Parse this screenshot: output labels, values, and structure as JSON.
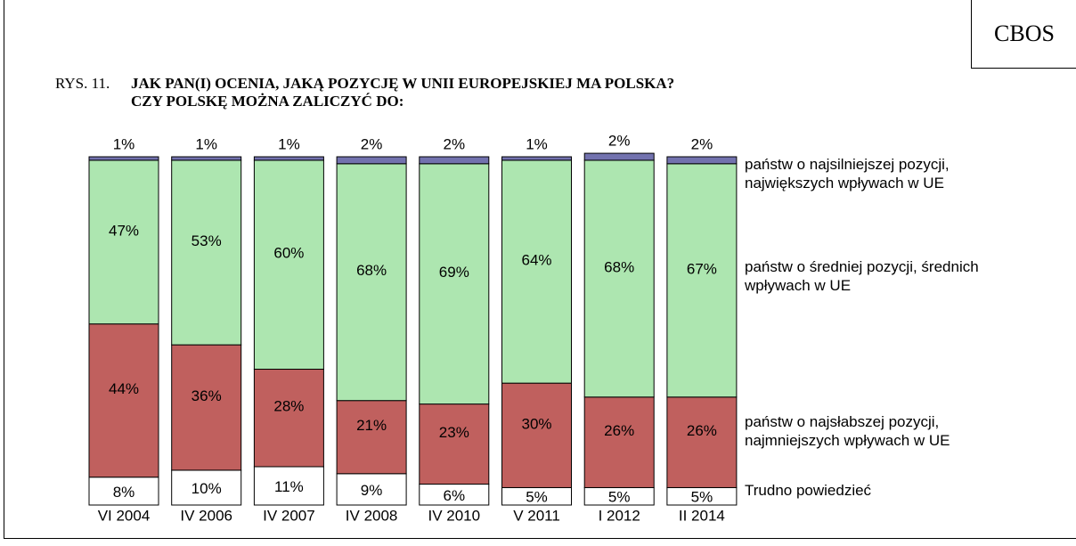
{
  "chart_data": {
    "type": "stacked_bar",
    "source": "CBOS",
    "label": "RYS. 11.",
    "title": [
      "JAK PAN(I) OCENIA, JAKĄ POZYCJĘ W UNII EUROPEJSKIEJ MA POLSKA?",
      "CZY POLSKĘ MOŻNA ZALICZYĆ DO:"
    ],
    "categories": [
      "VI 2004",
      "IV 2006",
      "IV 2007",
      "IV 2008",
      "IV 2010",
      "V 2011",
      "I 2012",
      "II 2014"
    ],
    "ylim": [
      0,
      100
    ],
    "series": [
      {
        "name": "Trudno powiedzieć",
        "color": "#ffffff",
        "values": [
          8,
          10,
          11,
          9,
          6,
          5,
          5,
          5
        ],
        "value_labels": [
          "8%",
          "10%",
          "11%",
          "9%",
          "6%",
          "5%",
          "5%",
          "5%"
        ]
      },
      {
        "name": "państw o najsłabszej pozycji, najmniejszych wpływach w UE",
        "color": "#c0605e",
        "values": [
          44,
          36,
          28,
          21,
          23,
          30,
          26,
          26
        ],
        "value_labels": [
          "44%",
          "36%",
          "28%",
          "21%",
          "23%",
          "30%",
          "26%",
          "26%"
        ]
      },
      {
        "name": "państw o średniej pozycji, średnich wpływach w UE",
        "color": "#ade6b0",
        "values": [
          47,
          53,
          60,
          68,
          69,
          64,
          68,
          67
        ],
        "value_labels": [
          "47%",
          "53%",
          "60%",
          "68%",
          "69%",
          "64%",
          "68%",
          "67%"
        ]
      },
      {
        "name": "państw o najsilniejszej pozycji, największych wpływach w UE",
        "color": "#7272ae",
        "values": [
          1,
          1,
          1,
          2,
          2,
          1,
          2,
          2
        ],
        "value_labels": [
          "1%",
          "1%",
          "1%",
          "2%",
          "2%",
          "1%",
          "2%",
          "2%"
        ]
      }
    ]
  }
}
